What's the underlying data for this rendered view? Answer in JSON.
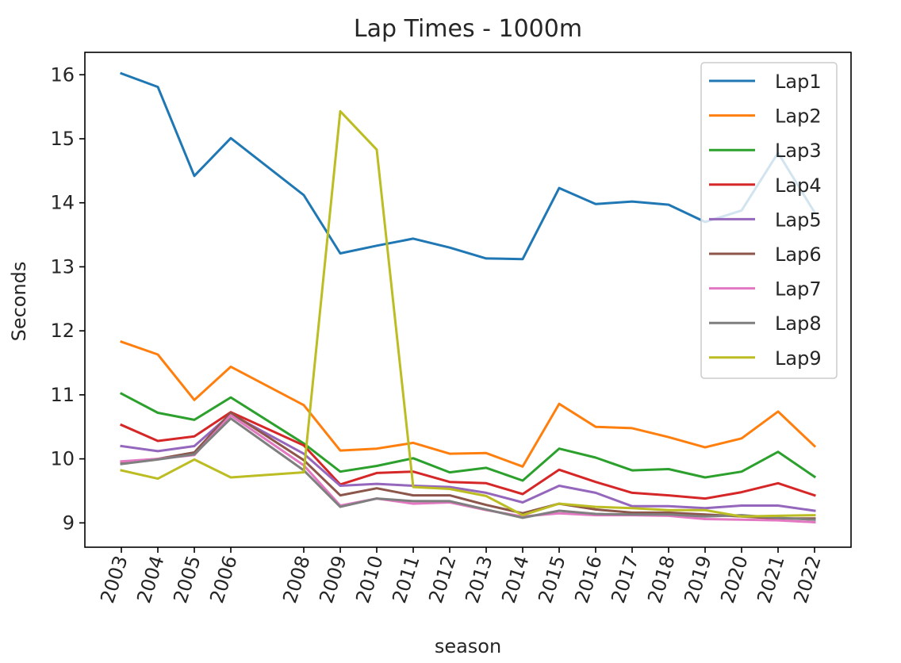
{
  "chart_data": {
    "type": "line",
    "title": "Lap Times - 1000m",
    "xlabel": "season",
    "ylabel": "Seconds",
    "x": [
      2003,
      2004,
      2005,
      2006,
      2008,
      2009,
      2010,
      2011,
      2012,
      2013,
      2014,
      2015,
      2016,
      2017,
      2018,
      2019,
      2020,
      2021,
      2022
    ],
    "xticks": [
      "2003",
      "2004",
      "2005",
      "2006",
      "2008",
      "2009",
      "2010",
      "2011",
      "2012",
      "2013",
      "2014",
      "2015",
      "2016",
      "2017",
      "2018",
      "2019",
      "2020",
      "2021",
      "2022"
    ],
    "yticks": [
      9,
      10,
      11,
      12,
      13,
      14,
      15,
      16
    ],
    "xlim": [
      2002.0,
      2023.0
    ],
    "ylim": [
      8.62,
      16.35
    ],
    "grid": false,
    "legend_position": "top-right",
    "series": [
      {
        "name": "Lap1",
        "color": "#1f77b4",
        "values": [
          16.02,
          15.81,
          14.42,
          15.01,
          14.12,
          13.21,
          13.33,
          13.44,
          13.3,
          13.13,
          13.12,
          14.23,
          13.98,
          14.02,
          13.97,
          13.7,
          13.88,
          14.78,
          13.85
        ]
      },
      {
        "name": "Lap2",
        "color": "#ff7f0e",
        "values": [
          11.83,
          11.63,
          10.92,
          11.44,
          10.84,
          10.13,
          10.16,
          10.25,
          10.08,
          10.09,
          9.88,
          10.86,
          10.5,
          10.48,
          10.34,
          10.18,
          10.32,
          10.74,
          10.2
        ]
      },
      {
        "name": "Lap3",
        "color": "#2ca02c",
        "values": [
          11.02,
          10.72,
          10.61,
          10.96,
          10.24,
          9.8,
          9.89,
          10.01,
          9.79,
          9.86,
          9.66,
          10.16,
          10.02,
          9.82,
          9.84,
          9.71,
          9.8,
          10.11,
          9.72
        ]
      },
      {
        "name": "Lap4",
        "color": "#d62728",
        "values": [
          10.53,
          10.28,
          10.35,
          10.73,
          10.21,
          9.6,
          9.78,
          9.8,
          9.64,
          9.62,
          9.45,
          9.83,
          9.64,
          9.47,
          9.43,
          9.38,
          9.48,
          9.62,
          9.43
        ]
      },
      {
        "name": "Lap5",
        "color": "#9467bd",
        "values": [
          10.2,
          10.12,
          10.2,
          10.7,
          10.08,
          9.58,
          9.61,
          9.58,
          9.56,
          9.47,
          9.32,
          9.58,
          9.47,
          9.26,
          9.26,
          9.23,
          9.27,
          9.27,
          9.19
        ]
      },
      {
        "name": "Lap6",
        "color": "#8c564b",
        "values": [
          9.95,
          10.0,
          10.1,
          10.72,
          9.98,
          9.43,
          9.54,
          9.43,
          9.43,
          9.28,
          9.15,
          9.3,
          9.21,
          9.16,
          9.16,
          9.13,
          9.1,
          9.07,
          9.07
        ]
      },
      {
        "name": "Lap7",
        "color": "#e377c2",
        "values": [
          9.96,
          10.0,
          10.06,
          10.68,
          9.9,
          9.27,
          9.38,
          9.3,
          9.32,
          9.2,
          9.1,
          9.15,
          9.12,
          9.12,
          9.11,
          9.06,
          9.05,
          9.04,
          9.01
        ]
      },
      {
        "name": "Lap8",
        "color": "#7f7f7f",
        "values": [
          9.92,
          9.99,
          10.07,
          10.63,
          9.82,
          9.25,
          9.38,
          9.34,
          9.34,
          9.21,
          9.08,
          9.19,
          9.14,
          9.13,
          9.13,
          9.1,
          9.12,
          9.08,
          9.05
        ]
      },
      {
        "name": "Lap9",
        "color": "#bcbd22",
        "values": [
          9.82,
          9.69,
          9.99,
          9.71,
          9.79,
          15.43,
          14.83,
          9.56,
          9.53,
          9.42,
          9.12,
          9.3,
          9.25,
          9.23,
          9.2,
          9.2,
          9.1,
          9.11,
          9.12
        ]
      }
    ]
  }
}
